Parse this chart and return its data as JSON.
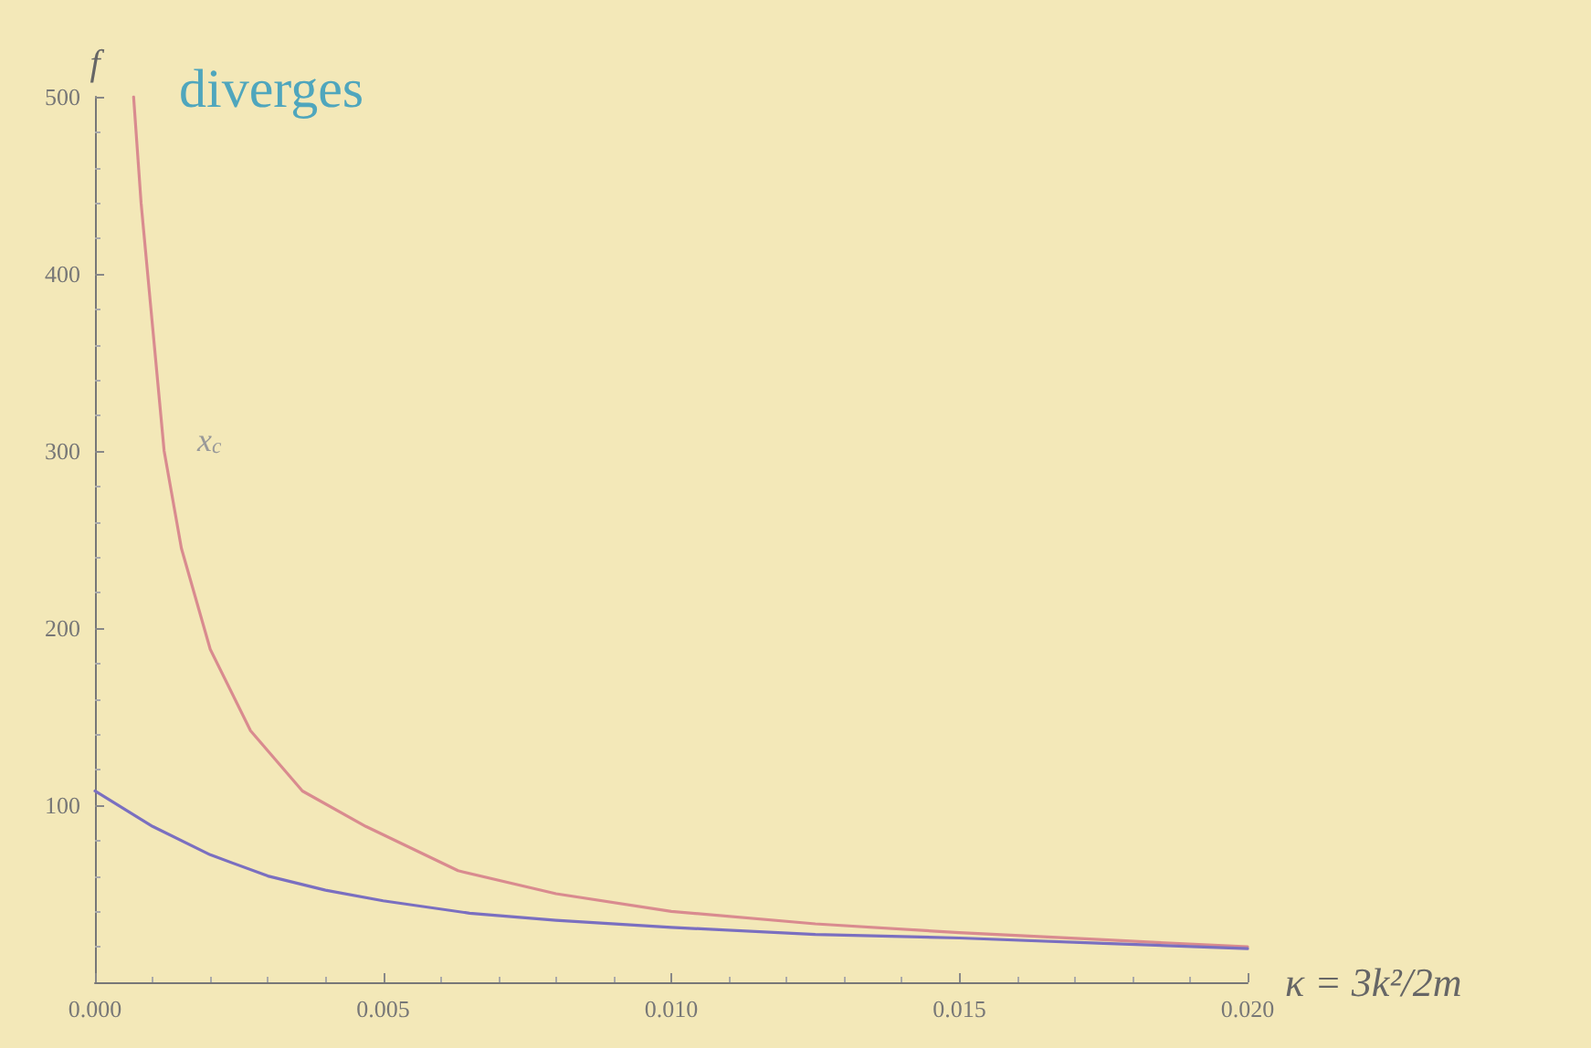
{
  "chart_data": {
    "type": "line",
    "xlabel": "κ = 3k²/2m",
    "ylabel": "f",
    "annotations": [
      "diverges",
      "x$_{c}$"
    ],
    "series": [
      {
        "color": "#d98b8f",
        "x": [
          0.00067,
          0.0008,
          0.001,
          0.0012,
          0.0015,
          0.002,
          0.0027,
          0.0036,
          0.0047,
          0.0063,
          0.008,
          0.01,
          0.0125,
          0.015,
          0.0175,
          0.02
        ],
        "values": [
          500,
          440,
          370,
          300,
          245,
          188,
          142,
          108,
          88,
          63,
          50,
          40,
          33,
          28,
          24,
          20
        ]
      },
      {
        "color": "#7a6fc0",
        "x": [
          0,
          0.001,
          0.002,
          0.003,
          0.004,
          0.005,
          0.0065,
          0.008,
          0.01,
          0.0125,
          0.015,
          0.0175,
          0.02
        ],
        "values": [
          108,
          88,
          72,
          60,
          52,
          46,
          39,
          35,
          31,
          27,
          25,
          22,
          19
        ]
      }
    ],
    "xlim": [
      0,
      0.02
    ],
    "xticks": [
      {
        "value": 0,
        "label": "0.000"
      },
      0.005,
      {
        "value": 0.01,
        "label": "0.010"
      },
      0.015,
      {
        "value": 0.02,
        "label": "0.020"
      }
    ],
    "ylim": [
      0,
      500
    ],
    "yticks": [
      100,
      200,
      300,
      400,
      500
    ],
    "grid": false,
    "marker": "none",
    "line_style": "solid"
  }
}
